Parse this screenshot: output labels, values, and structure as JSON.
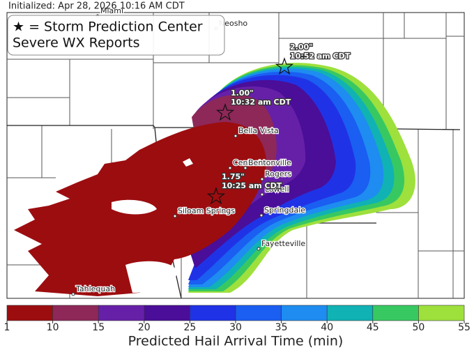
{
  "header": {
    "initialized": "Initialized: Apr 28, 2026 10:16 AM CDT"
  },
  "legend": {
    "lines": [
      "★ = Storm Prediction Center",
      "Severe WX Reports"
    ]
  },
  "cities": [
    "Miami",
    "Neosho",
    "Bella Vista",
    "Centerton",
    "Bentonville",
    "Rogers",
    "Lowell",
    "Siloam Springs",
    "Springdale",
    "Fayetteville",
    "Tahlequah"
  ],
  "reports": [
    {
      "size": "2.00\"",
      "time": "10:52 am CDT"
    },
    {
      "size": "1.00\"",
      "time": "10:32 am CDT"
    },
    {
      "size": "1.75\"",
      "time": "10:25 am CDT"
    }
  ],
  "colorbar": {
    "bounds": [
      1,
      10,
      15,
      20,
      25,
      30,
      35,
      40,
      45,
      50,
      55
    ],
    "colors": [
      "#9c0d10",
      "#8d2858",
      "#6620a8",
      "#4a0e98",
      "#2032e6",
      "#1a5ef2",
      "#1e8cf0",
      "#10b2b4",
      "#38c862",
      "#9ee03c"
    ],
    "label": "Predicted Hail Arrival Time (min)"
  }
}
